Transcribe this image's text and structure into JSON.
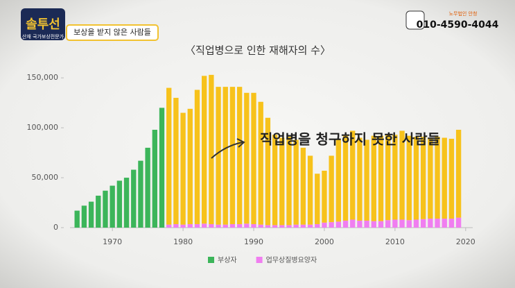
{
  "overlay": {
    "logo": "솔투선",
    "logo_caption": "산재 국가보상전문가",
    "banner": "보상을 받지 않은 사람들",
    "firm": "노무법인 안청",
    "phone": "010-4590-4044"
  },
  "chart_data": {
    "type": "bar",
    "title": "〈직업병으로 인한 재해자의 수〉",
    "annotation": "직업병을 청구하지 못한 사람들",
    "stacked": true,
    "grid": false,
    "legend": "bottom",
    "x": [
      1965,
      1966,
      1967,
      1968,
      1969,
      1970,
      1971,
      1972,
      1973,
      1974,
      1975,
      1976,
      1977,
      1978,
      1979,
      1980,
      1981,
      1982,
      1983,
      1984,
      1985,
      1986,
      1987,
      1988,
      1989,
      1990,
      1991,
      1992,
      1993,
      1994,
      1995,
      1996,
      1997,
      1998,
      1999,
      2000,
      2001,
      2002,
      2003,
      2004,
      2005,
      2006,
      2007,
      2008,
      2009,
      2010,
      2011,
      2012,
      2013,
      2014,
      2015,
      2016,
      2017,
      2018,
      2019
    ],
    "series": [
      {
        "name": "부상자",
        "color": "#3cb55a",
        "values": [
          17000,
          22000,
          26000,
          32000,
          37000,
          42000,
          47000,
          50000,
          58000,
          67000,
          80000,
          98000,
          120000,
          null,
          null,
          null,
          null,
          null,
          null,
          null,
          null,
          null,
          null,
          null,
          null,
          null,
          null,
          null,
          null,
          null,
          null,
          null,
          null,
          null,
          null,
          null,
          null,
          null,
          null,
          null,
          null,
          null,
          null,
          null,
          null,
          null,
          null,
          null,
          null,
          null,
          null,
          null,
          null,
          null,
          null
        ]
      },
      {
        "name": "업무상질병요양자",
        "color": "#f07ef0",
        "values": [
          null,
          null,
          null,
          null,
          null,
          null,
          null,
          null,
          null,
          null,
          null,
          null,
          null,
          3000,
          3500,
          3000,
          3500,
          3500,
          4000,
          3500,
          3000,
          3000,
          3500,
          3500,
          4000,
          3500,
          3000,
          2500,
          2500,
          2500,
          2500,
          3000,
          3000,
          3000,
          3500,
          5000,
          5500,
          6000,
          7000,
          8000,
          7000,
          7000,
          6500,
          6500,
          7500,
          8000,
          8000,
          7500,
          8000,
          8500,
          9000,
          9000,
          9000,
          9000,
          10000
        ]
      },
      {
        "color": "#f7c21b",
        "values": [
          null,
          null,
          null,
          null,
          null,
          null,
          null,
          null,
          null,
          null,
          null,
          null,
          null,
          137000,
          126500,
          112000,
          115500,
          134500,
          148000,
          149500,
          138000,
          138000,
          137500,
          137500,
          131000,
          131500,
          123000,
          107500,
          90500,
          87500,
          88500,
          85000,
          77000,
          69000,
          50500,
          52000,
          66500,
          82000,
          85000,
          89000,
          83000,
          81000,
          85500,
          85500,
          85500,
          85000,
          89000,
          84500,
          83000,
          82500,
          81000,
          82000,
          81000,
          80000,
          88000
        ]
      }
    ],
    "xlim": [
      1964,
      2021
    ],
    "xticks": [
      1970,
      1980,
      1990,
      2000,
      2010,
      2020
    ],
    "ylim": [
      0,
      155000
    ],
    "yticks": [
      0,
      {
        "value": 50000,
        "label": "50,000"
      },
      {
        "value": 100000,
        "label": "100,000"
      },
      {
        "value": 150000,
        "label": "150,000"
      }
    ]
  }
}
